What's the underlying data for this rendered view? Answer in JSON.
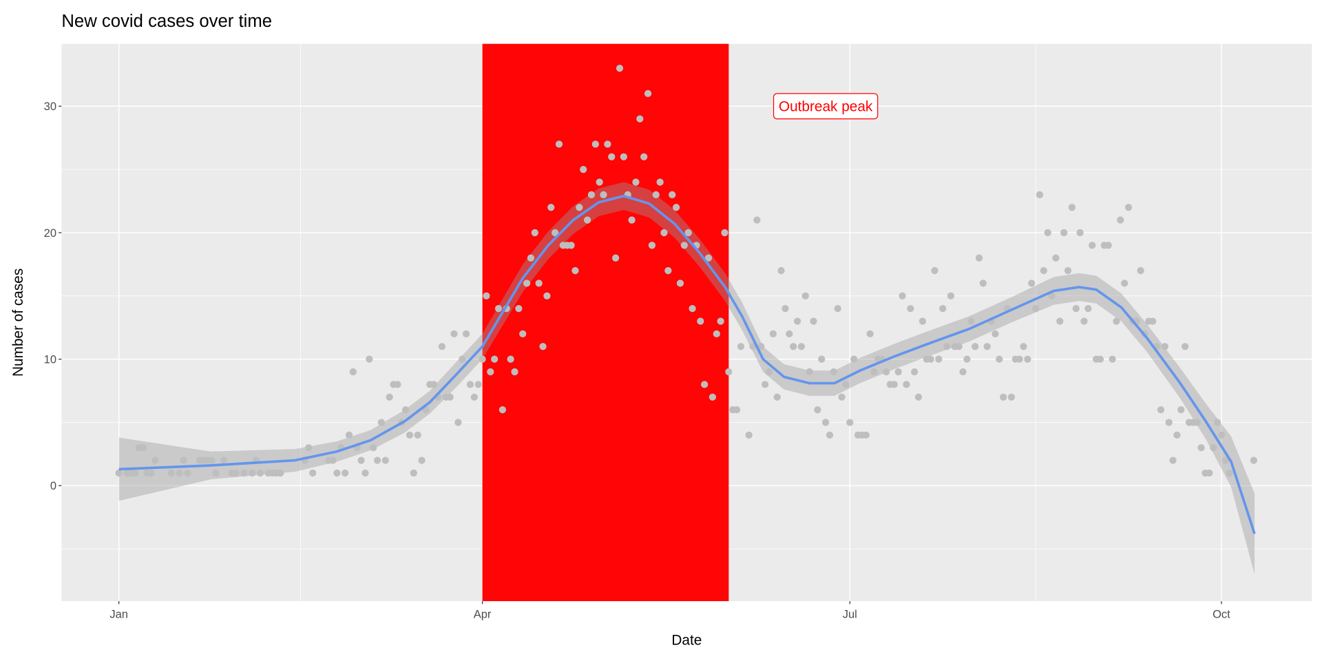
{
  "chart_data": {
    "type": "scatter",
    "title": "New covid cases over time",
    "xlabel": "Date",
    "ylabel": "Number of cases",
    "x_units": "days since Jan 1",
    "xlim": [
      -14.2,
      295.4
    ],
    "ylim": [
      -9.13,
      34.93
    ],
    "grid": true,
    "x_ticks": [
      {
        "label": "Jan",
        "value": 0
      },
      {
        "label": "Apr",
        "value": 90
      },
      {
        "label": "Jul",
        "value": 181
      },
      {
        "label": "Oct",
        "value": 273
      }
    ],
    "x_minor_ticks": [
      45,
      135.5,
      227
    ],
    "y_ticks": [
      {
        "label": "0",
        "value": 0
      },
      {
        "label": "10",
        "value": 10
      },
      {
        "label": "20",
        "value": 20
      },
      {
        "label": "30",
        "value": 30
      }
    ],
    "y_minor_ticks": [
      -5,
      5,
      15,
      25
    ],
    "highlight_region": {
      "x_start": 90,
      "x_end": 151,
      "color": "#FF0000"
    },
    "annotation": {
      "text": "Outbreak peak",
      "x": 175,
      "y": 30,
      "color": "#FF0000"
    },
    "point_color": "#BEBEBE",
    "smooth_color": "#6495ED",
    "points": [
      [
        0,
        1
      ],
      [
        2,
        1
      ],
      [
        3,
        1
      ],
      [
        4,
        1
      ],
      [
        5,
        3
      ],
      [
        6,
        3
      ],
      [
        7,
        1
      ],
      [
        8,
        1
      ],
      [
        9,
        2
      ],
      [
        13,
        1
      ],
      [
        15,
        1
      ],
      [
        16,
        2
      ],
      [
        17,
        1
      ],
      [
        20,
        2
      ],
      [
        21,
        2
      ],
      [
        22,
        2
      ],
      [
        23,
        2
      ],
      [
        24,
        1
      ],
      [
        26,
        2
      ],
      [
        28,
        1
      ],
      [
        29,
        1
      ],
      [
        31,
        1
      ],
      [
        33,
        1
      ],
      [
        34,
        2
      ],
      [
        35,
        1
      ],
      [
        37,
        1
      ],
      [
        38,
        1
      ],
      [
        39,
        1
      ],
      [
        40,
        1
      ],
      [
        46,
        2
      ],
      [
        47,
        3
      ],
      [
        48,
        1
      ],
      [
        52,
        2
      ],
      [
        53,
        2
      ],
      [
        54,
        1
      ],
      [
        55,
        3
      ],
      [
        56,
        1
      ],
      [
        57,
        4
      ],
      [
        58,
        9
      ],
      [
        59,
        3
      ],
      [
        60,
        2
      ],
      [
        61,
        1
      ],
      [
        62,
        10
      ],
      [
        63,
        3
      ],
      [
        64,
        2
      ],
      [
        65,
        5
      ],
      [
        66,
        2
      ],
      [
        67,
        7
      ],
      [
        68,
        8
      ],
      [
        69,
        8
      ],
      [
        70,
        5
      ],
      [
        71,
        6
      ],
      [
        72,
        4
      ],
      [
        73,
        1
      ],
      [
        74,
        4
      ],
      [
        75,
        2
      ],
      [
        76,
        6
      ],
      [
        77,
        8
      ],
      [
        78,
        8
      ],
      [
        79,
        7
      ],
      [
        80,
        11
      ],
      [
        81,
        7
      ],
      [
        82,
        7
      ],
      [
        83,
        12
      ],
      [
        84,
        5
      ],
      [
        85,
        10
      ],
      [
        86,
        12
      ],
      [
        87,
        8
      ],
      [
        88,
        7
      ],
      [
        89,
        8
      ],
      [
        90,
        10
      ],
      [
        91,
        15
      ],
      [
        92,
        9
      ],
      [
        93,
        10
      ],
      [
        94,
        14
      ],
      [
        95,
        6
      ],
      [
        96,
        14
      ],
      [
        97,
        10
      ],
      [
        98,
        9
      ],
      [
        99,
        14
      ],
      [
        100,
        12
      ],
      [
        101,
        16
      ],
      [
        102,
        18
      ],
      [
        103,
        20
      ],
      [
        104,
        16
      ],
      [
        105,
        11
      ],
      [
        106,
        15
      ],
      [
        107,
        22
      ],
      [
        108,
        20
      ],
      [
        109,
        27
      ],
      [
        110,
        19
      ],
      [
        111,
        19
      ],
      [
        112,
        19
      ],
      [
        113,
        17
      ],
      [
        114,
        22
      ],
      [
        115,
        25
      ],
      [
        116,
        21
      ],
      [
        117,
        23
      ],
      [
        118,
        27
      ],
      [
        119,
        24
      ],
      [
        120,
        23
      ],
      [
        121,
        27
      ],
      [
        122,
        26
      ],
      [
        123,
        18
      ],
      [
        124,
        33
      ],
      [
        125,
        26
      ],
      [
        126,
        23
      ],
      [
        127,
        21
      ],
      [
        128,
        24
      ],
      [
        129,
        29
      ],
      [
        130,
        26
      ],
      [
        131,
        31
      ],
      [
        132,
        19
      ],
      [
        133,
        23
      ],
      [
        134,
        24
      ],
      [
        135,
        20
      ],
      [
        136,
        17
      ],
      [
        137,
        23
      ],
      [
        138,
        22
      ],
      [
        139,
        16
      ],
      [
        140,
        19
      ],
      [
        141,
        20
      ],
      [
        142,
        14
      ],
      [
        143,
        19
      ],
      [
        144,
        13
      ],
      [
        145,
        8
      ],
      [
        146,
        18
      ],
      [
        147,
        7
      ],
      [
        148,
        12
      ],
      [
        149,
        13
      ],
      [
        150,
        20
      ],
      [
        151,
        9
      ],
      [
        152,
        6
      ],
      [
        153,
        6
      ],
      [
        154,
        11
      ],
      [
        156,
        4
      ],
      [
        157,
        11
      ],
      [
        158,
        21
      ],
      [
        159,
        11
      ],
      [
        160,
        8
      ],
      [
        161,
        9
      ],
      [
        162,
        12
      ],
      [
        163,
        7
      ],
      [
        164,
        17
      ],
      [
        165,
        14
      ],
      [
        166,
        12
      ],
      [
        167,
        11
      ],
      [
        168,
        13
      ],
      [
        169,
        11
      ],
      [
        170,
        15
      ],
      [
        171,
        9
      ],
      [
        172,
        13
      ],
      [
        173,
        6
      ],
      [
        174,
        10
      ],
      [
        175,
        5
      ],
      [
        176,
        4
      ],
      [
        177,
        9
      ],
      [
        178,
        14
      ],
      [
        179,
        7
      ],
      [
        180,
        8
      ],
      [
        181,
        5
      ],
      [
        182,
        10
      ],
      [
        183,
        4
      ],
      [
        184,
        4
      ],
      [
        185,
        4
      ],
      [
        186,
        12
      ],
      [
        187,
        9
      ],
      [
        188,
        10
      ],
      [
        189,
        10
      ],
      [
        190,
        9
      ],
      [
        191,
        8
      ],
      [
        192,
        8
      ],
      [
        193,
        9
      ],
      [
        194,
        15
      ],
      [
        195,
        8
      ],
      [
        196,
        14
      ],
      [
        197,
        9
      ],
      [
        198,
        7
      ],
      [
        199,
        13
      ],
      [
        200,
        10
      ],
      [
        201,
        10
      ],
      [
        202,
        17
      ],
      [
        203,
        10
      ],
      [
        204,
        14
      ],
      [
        205,
        11
      ],
      [
        206,
        15
      ],
      [
        207,
        11
      ],
      [
        208,
        11
      ],
      [
        209,
        9
      ],
      [
        210,
        10
      ],
      [
        211,
        13
      ],
      [
        212,
        11
      ],
      [
        213,
        18
      ],
      [
        214,
        16
      ],
      [
        215,
        11
      ],
      [
        216,
        13
      ],
      [
        217,
        12
      ],
      [
        218,
        10
      ],
      [
        219,
        7
      ],
      [
        220,
        14
      ],
      [
        221,
        7
      ],
      [
        222,
        10
      ],
      [
        223,
        10
      ],
      [
        224,
        11
      ],
      [
        225,
        10
      ],
      [
        226,
        16
      ],
      [
        227,
        14
      ],
      [
        228,
        23
      ],
      [
        229,
        17
      ],
      [
        230,
        20
      ],
      [
        231,
        15
      ],
      [
        232,
        18
      ],
      [
        233,
        13
      ],
      [
        234,
        20
      ],
      [
        235,
        17
      ],
      [
        236,
        22
      ],
      [
        237,
        14
      ],
      [
        238,
        20
      ],
      [
        239,
        13
      ],
      [
        240,
        14
      ],
      [
        241,
        19
      ],
      [
        242,
        10
      ],
      [
        243,
        10
      ],
      [
        244,
        19
      ],
      [
        245,
        19
      ],
      [
        246,
        10
      ],
      [
        247,
        13
      ],
      [
        248,
        21
      ],
      [
        249,
        16
      ],
      [
        250,
        22
      ],
      [
        251,
        13
      ],
      [
        252,
        13
      ],
      [
        253,
        17
      ],
      [
        254,
        12
      ],
      [
        255,
        13
      ],
      [
        256,
        13
      ],
      [
        257,
        11
      ],
      [
        258,
        6
      ],
      [
        259,
        11
      ],
      [
        260,
        5
      ],
      [
        261,
        2
      ],
      [
        262,
        4
      ],
      [
        263,
        6
      ],
      [
        264,
        11
      ],
      [
        265,
        5
      ],
      [
        266,
        5
      ],
      [
        267,
        5
      ],
      [
        268,
        3
      ],
      [
        269,
        1
      ],
      [
        270,
        1
      ],
      [
        271,
        3
      ],
      [
        272,
        5
      ],
      [
        273,
        4
      ],
      [
        274,
        2
      ],
      [
        275,
        1
      ],
      [
        281,
        2
      ]
    ],
    "smooth": [
      {
        "x": 0,
        "y": 1.3,
        "se": 2.5
      },
      {
        "x": 22.8,
        "y": 1.6,
        "se": 1.1
      },
      {
        "x": 43.6,
        "y": 2.0,
        "se": 0.9
      },
      {
        "x": 54,
        "y": 2.7,
        "se": 0.8
      },
      {
        "x": 62.4,
        "y": 3.6,
        "se": 0.8
      },
      {
        "x": 70.8,
        "y": 5.1,
        "se": 0.9
      },
      {
        "x": 77,
        "y": 6.6,
        "se": 0.9
      },
      {
        "x": 83.3,
        "y": 8.7,
        "se": 1.0
      },
      {
        "x": 90,
        "y": 11.0,
        "se": 1.0
      },
      {
        "x": 100,
        "y": 16.4,
        "se": 1.1
      },
      {
        "x": 106.3,
        "y": 19.0,
        "se": 1.1
      },
      {
        "x": 112.5,
        "y": 21.0,
        "se": 1.1
      },
      {
        "x": 118.8,
        "y": 22.4,
        "se": 1.1
      },
      {
        "x": 125,
        "y": 22.9,
        "se": 1.1
      },
      {
        "x": 131.3,
        "y": 22.3,
        "se": 1.1
      },
      {
        "x": 137.6,
        "y": 20.7,
        "se": 1.1
      },
      {
        "x": 143.8,
        "y": 18.4,
        "se": 1.1
      },
      {
        "x": 150.1,
        "y": 15.7,
        "se": 1.1
      },
      {
        "x": 154.3,
        "y": 13.4,
        "se": 1.1
      },
      {
        "x": 159.5,
        "y": 10.0,
        "se": 1.0
      },
      {
        "x": 164.7,
        "y": 8.6,
        "se": 1.0
      },
      {
        "x": 171,
        "y": 8.1,
        "se": 1.0
      },
      {
        "x": 177.2,
        "y": 8.1,
        "se": 1.0
      },
      {
        "x": 183.5,
        "y": 9.1,
        "se": 1.0
      },
      {
        "x": 191.9,
        "y": 10.2,
        "se": 1.0
      },
      {
        "x": 200.2,
        "y": 11.2,
        "se": 1.0
      },
      {
        "x": 210.6,
        "y": 12.4,
        "se": 1.0
      },
      {
        "x": 221,
        "y": 13.9,
        "se": 1.0
      },
      {
        "x": 231.5,
        "y": 15.4,
        "se": 1.1
      },
      {
        "x": 237.8,
        "y": 15.7,
        "se": 1.1
      },
      {
        "x": 242,
        "y": 15.5,
        "se": 1.1
      },
      {
        "x": 248.2,
        "y": 14.1,
        "se": 1.1
      },
      {
        "x": 254.5,
        "y": 11.7,
        "se": 1.1
      },
      {
        "x": 262.8,
        "y": 8.1,
        "se": 1.2
      },
      {
        "x": 269.1,
        "y": 5.1,
        "se": 1.4
      },
      {
        "x": 275.4,
        "y": 1.9,
        "se": 2.0
      },
      {
        "x": 281.2,
        "y": -3.8,
        "se": 3.2
      }
    ]
  }
}
